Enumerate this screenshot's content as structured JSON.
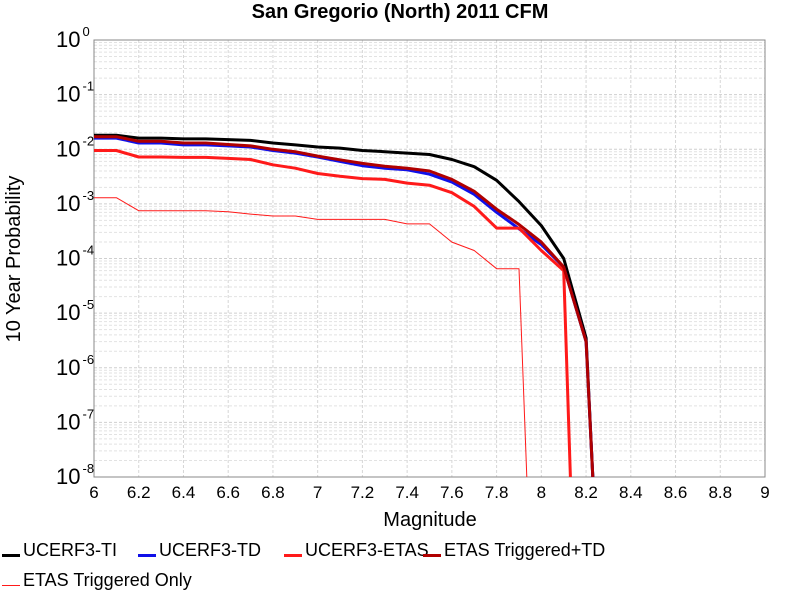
{
  "chart_data": {
    "type": "line",
    "title": "San Gregorio (North) 2011 CFM",
    "xlabel": "Magnitude",
    "ylabel": "10 Year Probability",
    "xlim": [
      6,
      9
    ],
    "ylim": [
      1e-08,
      1
    ],
    "yscale": "log",
    "grid": true,
    "legend_position": "bottom",
    "x_ticks": [
      "6",
      "6.2",
      "6.4",
      "6.6",
      "6.8",
      "7",
      "7.2",
      "7.4",
      "7.6",
      "7.8",
      "8",
      "8.2",
      "8.4",
      "8.6",
      "8.8",
      "9"
    ],
    "y_ticks": [
      {
        "base": "10",
        "exp": "0"
      },
      {
        "base": "10",
        "exp": "-1"
      },
      {
        "base": "10",
        "exp": "-2"
      },
      {
        "base": "10",
        "exp": "-3"
      },
      {
        "base": "10",
        "exp": "-4"
      },
      {
        "base": "10",
        "exp": "-5"
      },
      {
        "base": "10",
        "exp": "-6"
      },
      {
        "base": "10",
        "exp": "-7"
      },
      {
        "base": "10",
        "exp": "-8"
      }
    ],
    "series": [
      {
        "name": "UCERF3-TI",
        "color": "#000000",
        "width": 3,
        "x": [
          6.0,
          6.1,
          6.2,
          6.3,
          6.4,
          6.5,
          6.6,
          6.7,
          6.8,
          6.9,
          7.0,
          7.1,
          7.2,
          7.3,
          7.4,
          7.5,
          7.6,
          7.7,
          7.8,
          7.9,
          8.0,
          8.1,
          8.2,
          8.23
        ],
        "y": [
          0.018,
          0.018,
          0.016,
          0.016,
          0.0155,
          0.0155,
          0.015,
          0.0145,
          0.013,
          0.012,
          0.011,
          0.0105,
          0.0095,
          0.009,
          0.0085,
          0.008,
          0.0065,
          0.0048,
          0.0027,
          0.0011,
          0.0004,
          0.0001,
          3.5e-06,
          1e-08
        ]
      },
      {
        "name": "UCERF3-TD",
        "color": "#1010e8",
        "width": 3,
        "x": [
          6.0,
          6.1,
          6.2,
          6.3,
          6.4,
          6.5,
          6.6,
          6.7,
          6.8,
          6.9,
          7.0,
          7.1,
          7.2,
          7.3,
          7.4,
          7.5,
          7.6,
          7.7,
          7.8,
          7.9,
          8.0,
          8.1,
          8.2,
          8.23
        ],
        "y": [
          0.016,
          0.016,
          0.013,
          0.013,
          0.012,
          0.012,
          0.0115,
          0.011,
          0.0095,
          0.0085,
          0.0072,
          0.006,
          0.005,
          0.0045,
          0.0042,
          0.0035,
          0.0025,
          0.0015,
          0.0007,
          0.00035,
          0.00018,
          7e-05,
          3e-06,
          1e-08
        ]
      },
      {
        "name": "UCERF3-ETAS",
        "color": "#ff1a1a",
        "width": 3,
        "x": [
          6.0,
          6.1,
          6.2,
          6.3,
          6.4,
          6.5,
          6.6,
          6.7,
          6.8,
          6.9,
          7.0,
          7.1,
          7.2,
          7.3,
          7.4,
          7.5,
          7.6,
          7.7,
          7.8,
          7.9,
          8.0,
          8.1,
          8.13
        ],
        "y": [
          0.0095,
          0.0095,
          0.0072,
          0.0072,
          0.0071,
          0.0071,
          0.0068,
          0.0065,
          0.0052,
          0.0045,
          0.0036,
          0.0032,
          0.0029,
          0.0028,
          0.0024,
          0.0022,
          0.0016,
          0.0009,
          0.00036,
          0.00036,
          0.00014,
          6e-05,
          1e-08
        ]
      },
      {
        "name": "ETAS Triggered+TD",
        "color": "#b00000",
        "width": 3,
        "x": [
          6.0,
          6.1,
          6.2,
          6.3,
          6.4,
          6.5,
          6.6,
          6.7,
          6.8,
          6.9,
          7.0,
          7.1,
          7.2,
          7.3,
          7.4,
          7.5,
          7.6,
          7.7,
          7.8,
          7.9,
          8.0,
          8.1,
          8.2,
          8.23
        ],
        "y": [
          0.017,
          0.017,
          0.014,
          0.014,
          0.013,
          0.013,
          0.0122,
          0.0115,
          0.01,
          0.009,
          0.0075,
          0.0064,
          0.0055,
          0.0049,
          0.0045,
          0.004,
          0.0028,
          0.0017,
          0.0008,
          0.00042,
          0.0002,
          7e-05,
          3e-06,
          1e-08
        ]
      },
      {
        "name": "ETAS Triggered Only",
        "color": "#ff1a1a",
        "width": 1,
        "x": [
          6.0,
          6.1,
          6.2,
          6.3,
          6.4,
          6.5,
          6.6,
          6.7,
          6.8,
          6.9,
          7.0,
          7.1,
          7.2,
          7.3,
          7.4,
          7.5,
          7.6,
          7.7,
          7.8,
          7.9,
          7.935
        ],
        "y": [
          0.0013,
          0.0013,
          0.00075,
          0.00075,
          0.00075,
          0.00075,
          0.00072,
          0.00065,
          0.0006,
          0.0006,
          0.00052,
          0.00052,
          0.00052,
          0.00052,
          0.00043,
          0.00043,
          0.0002,
          0.00014,
          6.5e-05,
          6.5e-05,
          1e-08
        ]
      }
    ]
  }
}
